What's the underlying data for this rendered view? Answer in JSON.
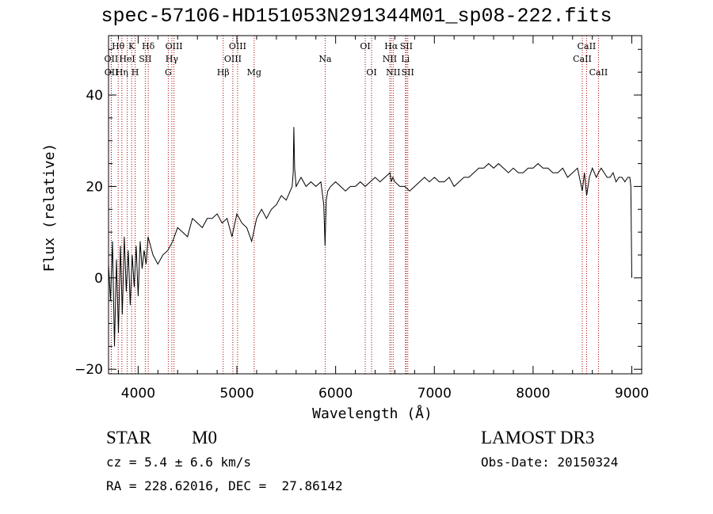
{
  "title": "spec-57106-HD151053N291344M01_sp08-222.fits",
  "info": {
    "class_label": "STAR",
    "subclass": "M0",
    "survey": "LAMOST DR3",
    "cz": "cz = 5.4 ± 6.6 km/s",
    "obs_date": "Obs-Date: 20150324",
    "coords": "RA = 228.62016, DEC =  27.86142"
  },
  "chart_data": {
    "type": "line",
    "xlabel": "Wavelength (Å)",
    "ylabel": "Flux (relative)",
    "xlim": [
      3700,
      9100
    ],
    "ylim": [
      -21,
      53
    ],
    "x_ticks": [
      4000,
      5000,
      6000,
      7000,
      8000,
      9000
    ],
    "y_ticks": [
      -20,
      0,
      20,
      40
    ],
    "line_color": "#000000",
    "marker_color": "#aa0000",
    "series": [
      {
        "name": "flux",
        "x": [
          3700,
          3720,
          3740,
          3760,
          3780,
          3800,
          3820,
          3840,
          3860,
          3880,
          3900,
          3920,
          3940,
          3960,
          3980,
          4000,
          4020,
          4040,
          4060,
          4080,
          4100,
          4150,
          4200,
          4250,
          4300,
          4350,
          4400,
          4450,
          4500,
          4550,
          4600,
          4650,
          4700,
          4750,
          4800,
          4850,
          4900,
          4950,
          5000,
          5050,
          5100,
          5150,
          5200,
          5250,
          5300,
          5350,
          5400,
          5450,
          5500,
          5540,
          5560,
          5570,
          5577,
          5585,
          5600,
          5650,
          5700,
          5750,
          5800,
          5850,
          5880,
          5893,
          5905,
          5920,
          5950,
          6000,
          6050,
          6100,
          6150,
          6200,
          6250,
          6300,
          6350,
          6400,
          6450,
          6500,
          6550,
          6563,
          6580,
          6600,
          6650,
          6700,
          6750,
          6800,
          6850,
          6900,
          6950,
          7000,
          7050,
          7100,
          7150,
          7200,
          7250,
          7300,
          7350,
          7400,
          7450,
          7500,
          7550,
          7600,
          7650,
          7700,
          7750,
          7800,
          7850,
          7900,
          7950,
          8000,
          8050,
          8100,
          8150,
          8200,
          8250,
          8300,
          8350,
          8400,
          8450,
          8498,
          8520,
          8542,
          8570,
          8600,
          8640,
          8662,
          8690,
          8720,
          8750,
          8780,
          8810,
          8840,
          8870,
          8900,
          8930,
          8960,
          8980,
          8990,
          9000
        ],
        "y": [
          3,
          -5,
          8,
          -15,
          4,
          -12,
          7,
          -8,
          9,
          -3,
          6,
          -6,
          5,
          -2,
          7,
          -4,
          8,
          2,
          6,
          3,
          9,
          5,
          3,
          5,
          6,
          8,
          11,
          10,
          9,
          13,
          12,
          11,
          13,
          13,
          14,
          12,
          13,
          9,
          14,
          12,
          11,
          8,
          13,
          15,
          13,
          15,
          16,
          18,
          17,
          19,
          20,
          23,
          33,
          24,
          20,
          22,
          20,
          21,
          20,
          21,
          16,
          7,
          17,
          19,
          20,
          21,
          20,
          19,
          20,
          20,
          21,
          20,
          21,
          22,
          21,
          22,
          23,
          21,
          22,
          21,
          20,
          20,
          19,
          20,
          21,
          22,
          21,
          22,
          21,
          21,
          22,
          20,
          21,
          22,
          22,
          23,
          24,
          24,
          25,
          24,
          25,
          24,
          23,
          24,
          23,
          23,
          24,
          24,
          25,
          24,
          24,
          23,
          23,
          24,
          22,
          23,
          24,
          19,
          23,
          18,
          22,
          24,
          22,
          23,
          24,
          23,
          22,
          22,
          23,
          21,
          22,
          22,
          21,
          22,
          22,
          20,
          0
        ]
      }
    ],
    "lines": [
      {
        "label": "OII",
        "x": 3727,
        "row": 2
      },
      {
        "label": "OII",
        "x": 3729,
        "row": 3
      },
      {
        "label": "Hθ",
        "x": 3798,
        "row": 1
      },
      {
        "label": "Hη",
        "x": 3835,
        "row": 3
      },
      {
        "label": "HeI",
        "x": 3889,
        "row": 2
      },
      {
        "label": "K",
        "x": 3934,
        "row": 1
      },
      {
        "label": "H",
        "x": 3969,
        "row": 3
      },
      {
        "label": "SII",
        "x": 4072,
        "row": 2
      },
      {
        "label": "Hδ",
        "x": 4102,
        "row": 1
      },
      {
        "label": "G",
        "x": 4305,
        "row": 3
      },
      {
        "label": "Hγ",
        "x": 4341,
        "row": 2
      },
      {
        "label": "OIII",
        "x": 4363,
        "row": 1
      },
      {
        "label": "Hβ",
        "x": 4861,
        "row": 3
      },
      {
        "label": "OIII",
        "x": 4959,
        "row": 2
      },
      {
        "label": "OIII",
        "x": 5007,
        "row": 1
      },
      {
        "label": "Mg",
        "x": 5175,
        "row": 3
      },
      {
        "label": "Na",
        "x": 5894,
        "row": 2
      },
      {
        "label": "OI",
        "x": 6300,
        "row": 1
      },
      {
        "label": "OI",
        "x": 6364,
        "row": 3
      },
      {
        "label": "NII",
        "x": 6548,
        "row": 2
      },
      {
        "label": "Hα",
        "x": 6563,
        "row": 1
      },
      {
        "label": "NII",
        "x": 6583,
        "row": 3
      },
      {
        "label": "Li",
        "x": 6707,
        "row": 2
      },
      {
        "label": "SII",
        "x": 6716,
        "row": 1
      },
      {
        "label": "SII",
        "x": 6731,
        "row": 3
      },
      {
        "label": "CaII",
        "x": 8498,
        "row": 2
      },
      {
        "label": "CaII",
        "x": 8542,
        "row": 1
      },
      {
        "label": "CaII",
        "x": 8662,
        "row": 3
      }
    ]
  }
}
